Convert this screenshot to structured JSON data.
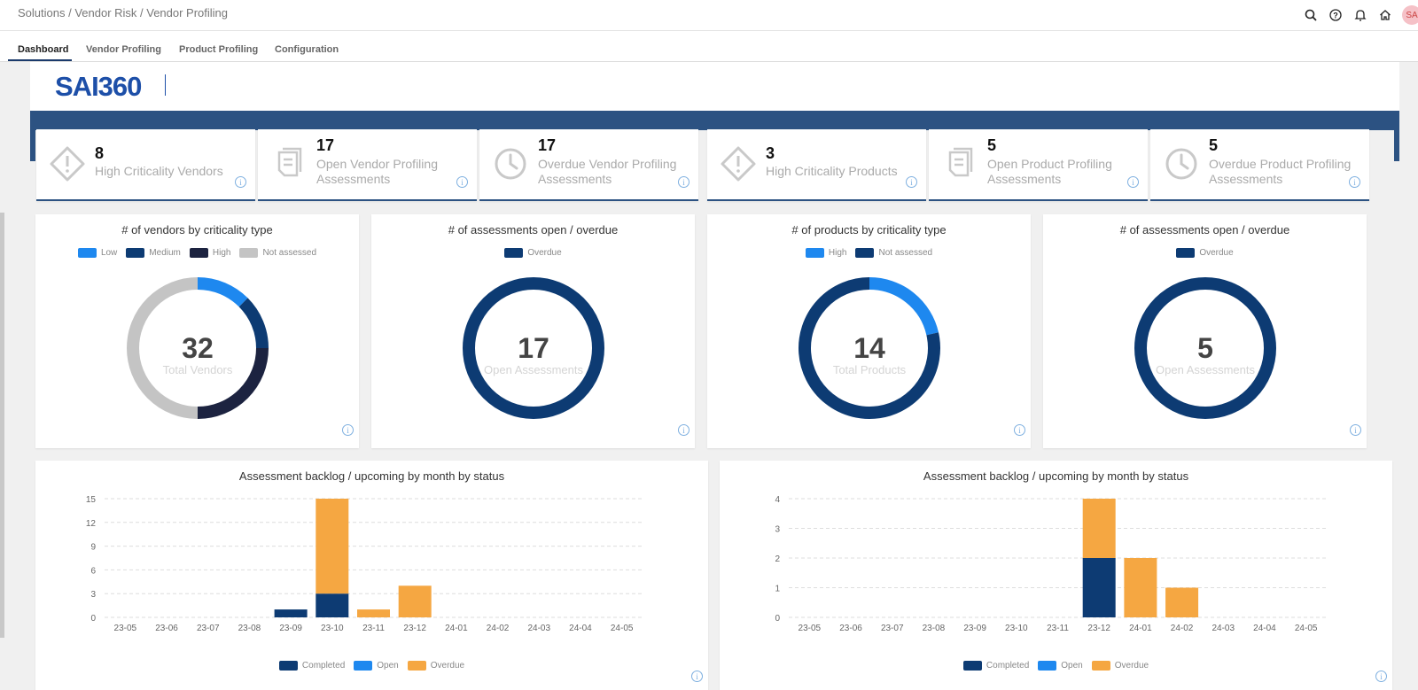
{
  "breadcrumb": "Solutions / Vendor Risk / Vendor Profiling",
  "avatar": "SA",
  "tabs": [
    {
      "label": "Dashboard"
    },
    {
      "label": "Vendor Profiling"
    },
    {
      "label": "Product Profiling"
    },
    {
      "label": "Configuration"
    }
  ],
  "logo": "SAI360",
  "kpis": [
    {
      "value": "8",
      "label": "High Criticality Vendors",
      "icon": "warning-diamond-icon"
    },
    {
      "value": "17",
      "label": "Open Vendor Profiling Assessments",
      "icon": "document-stack-icon"
    },
    {
      "value": "17",
      "label": "Overdue Vendor Profiling Assessments",
      "icon": "clock-icon"
    },
    {
      "value": "3",
      "label": "High Criticality Products",
      "icon": "warning-diamond-icon"
    },
    {
      "value": "5",
      "label": "Open Product Profiling Assessments",
      "icon": "document-stack-icon"
    },
    {
      "value": "5",
      "label": "Overdue Product Profiling Assessments",
      "icon": "clock-icon"
    }
  ],
  "colors": {
    "low": "#1e88ef",
    "medium": "#0d3b73",
    "high": "#1c2340",
    "not_assessed": "#c4c4c4",
    "overdue": "#f5a742",
    "completed": "#0d3b73",
    "open": "#1e88ef",
    "banner": "#2c5282"
  },
  "donuts": [
    {
      "title": "# of vendors by criticality type",
      "center_value": "32",
      "center_label": "Total Vendors",
      "legend": [
        {
          "name": "Low",
          "color": "#1e88ef"
        },
        {
          "name": "Medium",
          "color": "#0d3b73"
        },
        {
          "name": "High",
          "color": "#1c2340"
        },
        {
          "name": "Not assessed",
          "color": "#c4c4c4"
        }
      ]
    },
    {
      "title": "# of assessments open / overdue",
      "center_value": "17",
      "center_label": "Open Assessments",
      "legend": [
        {
          "name": "Overdue",
          "color": "#0d3b73"
        }
      ]
    },
    {
      "title": "# of products by criticality type",
      "center_value": "14",
      "center_label": "Total Products",
      "legend": [
        {
          "name": "High",
          "color": "#1e88ef"
        },
        {
          "name": "Not assessed",
          "color": "#0d3b73"
        }
      ]
    },
    {
      "title": "# of assessments open / overdue",
      "center_value": "5",
      "center_label": "Open Assessments",
      "legend": [
        {
          "name": "Overdue",
          "color": "#0d3b73"
        }
      ]
    }
  ],
  "chart_data": [
    {
      "type": "pie",
      "title": "# of vendors by criticality type",
      "categories": [
        "Low",
        "Medium",
        "High",
        "Not assessed"
      ],
      "values": [
        4,
        4,
        8,
        16
      ]
    },
    {
      "type": "pie",
      "title": "# of assessments open / overdue",
      "categories": [
        "Overdue"
      ],
      "values": [
        17
      ]
    },
    {
      "type": "pie",
      "title": "# of products by criticality type",
      "categories": [
        "High",
        "Not assessed"
      ],
      "values": [
        3,
        11
      ]
    },
    {
      "type": "pie",
      "title": "# of assessments open / overdue",
      "categories": [
        "Overdue"
      ],
      "values": [
        5
      ]
    },
    {
      "type": "bar",
      "stacked": true,
      "title": "Assessment backlog / upcoming by month by status",
      "categories": [
        "23-05",
        "23-06",
        "23-07",
        "23-08",
        "23-09",
        "23-10",
        "23-11",
        "23-12",
        "24-01",
        "24-02",
        "24-03",
        "24-04",
        "24-05"
      ],
      "series": [
        {
          "name": "Completed",
          "values": [
            0,
            0,
            0,
            0,
            1,
            3,
            0,
            0,
            0,
            0,
            0,
            0,
            0
          ]
        },
        {
          "name": "Open",
          "values": [
            0,
            0,
            0,
            0,
            0,
            0,
            0,
            0,
            0,
            0,
            0,
            0,
            0
          ]
        },
        {
          "name": "Overdue",
          "values": [
            0,
            0,
            0,
            0,
            0,
            12,
            1,
            4,
            0,
            0,
            0,
            0,
            0
          ]
        }
      ],
      "yticks": [
        "0",
        "3",
        "6",
        "9",
        "12",
        "15"
      ],
      "ylim": [
        0,
        15
      ],
      "grid": true,
      "legend": "bottom"
    },
    {
      "type": "bar",
      "stacked": true,
      "title": "Assessment backlog / upcoming by month by status",
      "categories": [
        "23-05",
        "23-06",
        "23-07",
        "23-08",
        "23-09",
        "23-10",
        "23-11",
        "23-12",
        "24-01",
        "24-02",
        "24-03",
        "24-04",
        "24-05"
      ],
      "series": [
        {
          "name": "Completed",
          "values": [
            0,
            0,
            0,
            0,
            0,
            0,
            0,
            2,
            0,
            0,
            0,
            0,
            0
          ]
        },
        {
          "name": "Open",
          "values": [
            0,
            0,
            0,
            0,
            0,
            0,
            0,
            0,
            0,
            0,
            0,
            0,
            0
          ]
        },
        {
          "name": "Overdue",
          "values": [
            0,
            0,
            0,
            0,
            0,
            0,
            0,
            2,
            2,
            1,
            0,
            0,
            0
          ]
        }
      ],
      "yticks": [
        "0",
        "1",
        "2",
        "3",
        "4"
      ],
      "ylim": [
        0,
        4
      ],
      "grid": true,
      "legend": "bottom"
    }
  ]
}
